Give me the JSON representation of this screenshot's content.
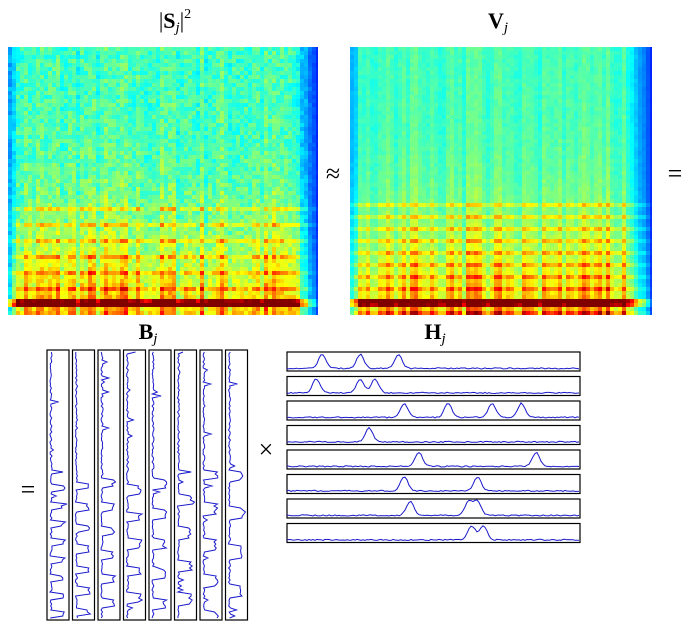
{
  "labels": {
    "s": {
      "open": "|",
      "base": "S",
      "sub": "j",
      "close": "|",
      "sup": "2"
    },
    "v": {
      "base": "V",
      "sub": "j"
    },
    "b": {
      "base": "B",
      "sub": "j"
    },
    "h": {
      "base": "H",
      "sub": "j"
    }
  },
  "operators": {
    "approx": "≈",
    "equals_right": "=",
    "equals_left": "=",
    "times": "×"
  }
}
